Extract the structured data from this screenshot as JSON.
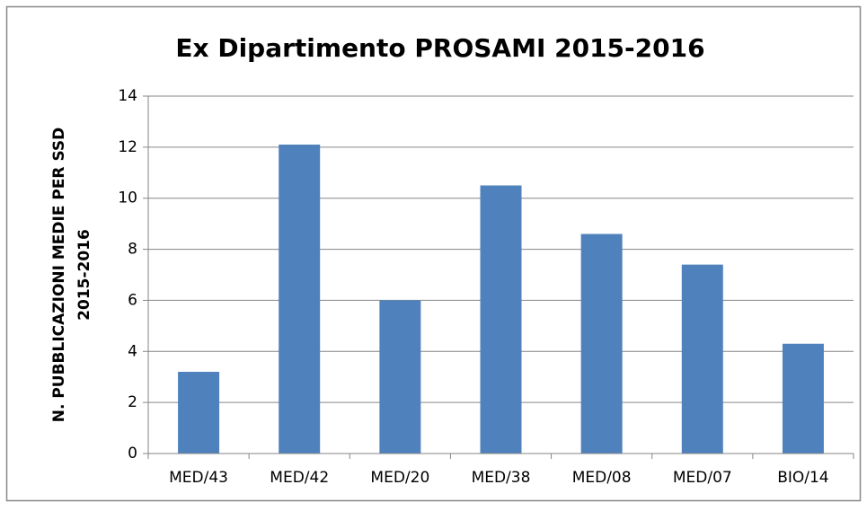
{
  "chart_data": {
    "type": "bar",
    "title": "Ex Dipartimento PROSAMI 2015-2016",
    "ylabel": [
      "N. PUBBLICAZIONI MEDIE PER SSD",
      "2015-2016"
    ],
    "categories": [
      "MED/43",
      "MED/42",
      "MED/20",
      "MED/38",
      "MED/08",
      "MED/07",
      "BIO/14"
    ],
    "values": [
      3.2,
      12.1,
      6.0,
      10.5,
      8.6,
      7.4,
      4.3
    ],
    "color": "#4f81bd",
    "ylim": [
      0,
      14
    ],
    "yticks": [
      0,
      2,
      4,
      6,
      8,
      10,
      12,
      14
    ],
    "grid": true
  }
}
